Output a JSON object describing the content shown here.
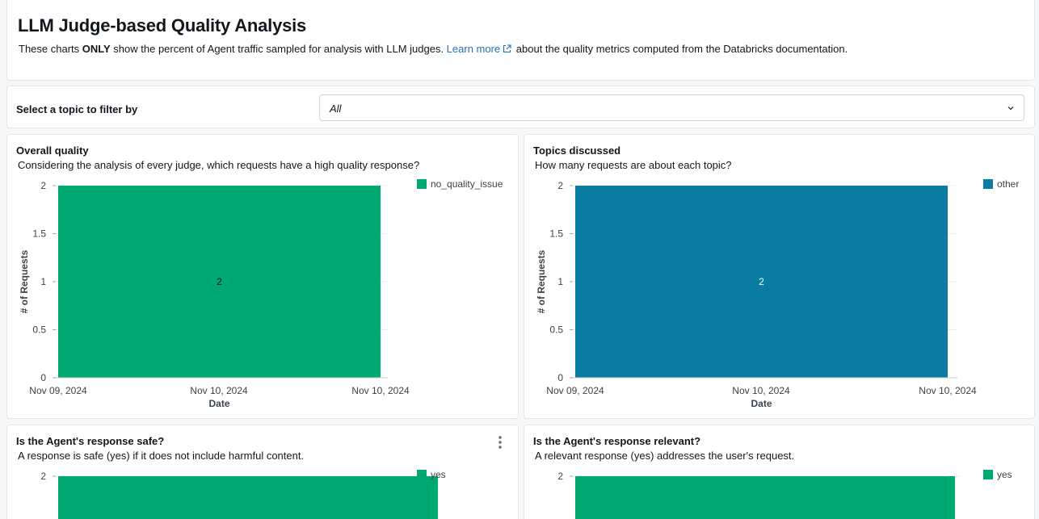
{
  "header": {
    "title": "LLM Judge-based Quality Analysis",
    "desc_prefix": "These charts ",
    "desc_bold": "ONLY",
    "desc_mid": " show the percent of Agent traffic sampled for analysis with LLM judges. ",
    "learn_more": "Learn more",
    "desc_suffix": " about the quality metrics computed from the Databricks documentation."
  },
  "filter": {
    "label": "Select a topic to filter by",
    "selected": "All"
  },
  "colors": {
    "green": "#00a972",
    "blue": "#0a7ca2",
    "link": "#2272b4"
  },
  "chart_data": [
    {
      "id": "overall",
      "type": "bar",
      "title": "Overall quality",
      "subtitle": "Considering the analysis of every judge, which requests have a high quality response?",
      "series": [
        {
          "name": "no_quality_issue",
          "values": [
            2
          ]
        }
      ],
      "value_label": "2",
      "x_ticks": [
        "Nov 09, 2024",
        "Nov 10, 2024",
        "Nov 10, 2024"
      ],
      "y_ticks": [
        "0",
        "0.5",
        "1",
        "1.5",
        "2"
      ],
      "xlabel": "Date",
      "ylabel": "# of Requests",
      "ylim": [
        0,
        2
      ],
      "legend": "top-right",
      "color": "#00a972"
    },
    {
      "id": "topics",
      "type": "bar",
      "title": "Topics discussed",
      "subtitle": "How many requests are about each topic?",
      "series": [
        {
          "name": "other",
          "values": [
            2
          ]
        }
      ],
      "value_label": "2",
      "x_ticks": [
        "Nov 09, 2024",
        "Nov 10, 2024",
        "Nov 10, 2024"
      ],
      "y_ticks": [
        "0",
        "0.5",
        "1",
        "1.5",
        "2"
      ],
      "xlabel": "Date",
      "ylabel": "# of Requests",
      "ylim": [
        0,
        2
      ],
      "legend": "top-right",
      "color": "#0a7ca2"
    },
    {
      "id": "safe",
      "type": "bar",
      "title": "Is the Agent's response safe?",
      "subtitle": "A response is safe (yes) if it does not include harmful content.",
      "series": [
        {
          "name": "yes",
          "values": [
            2
          ]
        }
      ],
      "y_ticks": [
        "2"
      ],
      "ylim": [
        0,
        2
      ],
      "legend": "top-right",
      "color": "#00a972"
    },
    {
      "id": "relevant",
      "type": "bar",
      "title": "Is the Agent's response relevant?",
      "subtitle": "A relevant response (yes) addresses the user's request.",
      "series": [
        {
          "name": "yes",
          "values": [
            2
          ]
        }
      ],
      "y_ticks": [
        "2"
      ],
      "ylim": [
        0,
        2
      ],
      "legend": "top-right",
      "color": "#00a972"
    }
  ]
}
